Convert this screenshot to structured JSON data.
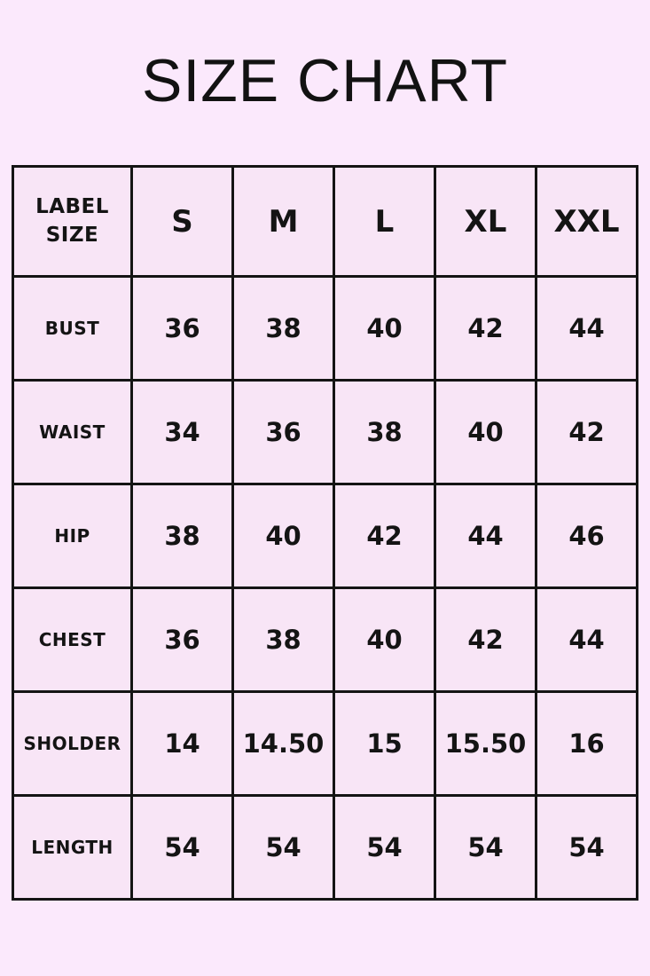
{
  "page": {
    "title": "SIZE CHART"
  },
  "colors": {
    "background": "#fbe9fc",
    "cell_background": "#f8e5f6",
    "border": "#141414",
    "text": "#141414"
  },
  "table": {
    "header": {
      "label_line1": "LABEL",
      "label_line2": "SIZE",
      "sizes": [
        "S",
        "M",
        "L",
        "XL",
        "XXL"
      ]
    },
    "rows": [
      {
        "label": "BUST",
        "values": [
          "36",
          "38",
          "40",
          "42",
          "44"
        ]
      },
      {
        "label": "WAIST",
        "values": [
          "34",
          "36",
          "38",
          "40",
          "42"
        ]
      },
      {
        "label": "HIP",
        "values": [
          "38",
          "40",
          "42",
          "44",
          "46"
        ]
      },
      {
        "label": "CHEST",
        "values": [
          "36",
          "38",
          "40",
          "42",
          "44"
        ]
      },
      {
        "label": "SHOLDER",
        "values": [
          "14",
          "14.50",
          "15",
          "15.50",
          "16"
        ]
      },
      {
        "label": "LENGTH",
        "values": [
          "54",
          "54",
          "54",
          "54",
          "54"
        ]
      }
    ]
  },
  "chart_data": {
    "type": "table",
    "title": "SIZE CHART",
    "columns": [
      "LABEL SIZE",
      "S",
      "M",
      "L",
      "XL",
      "XXL"
    ],
    "rows": [
      {
        "label": "BUST",
        "values": [
          36,
          38,
          40,
          42,
          44
        ]
      },
      {
        "label": "WAIST",
        "values": [
          34,
          36,
          38,
          40,
          42
        ]
      },
      {
        "label": "HIP",
        "values": [
          38,
          40,
          42,
          44,
          46
        ]
      },
      {
        "label": "CHEST",
        "values": [
          36,
          38,
          40,
          42,
          44
        ]
      },
      {
        "label": "SHOLDER",
        "values": [
          14,
          14.5,
          15,
          15.5,
          16
        ]
      },
      {
        "label": "LENGTH",
        "values": [
          54,
          54,
          54,
          54,
          54
        ]
      }
    ]
  }
}
